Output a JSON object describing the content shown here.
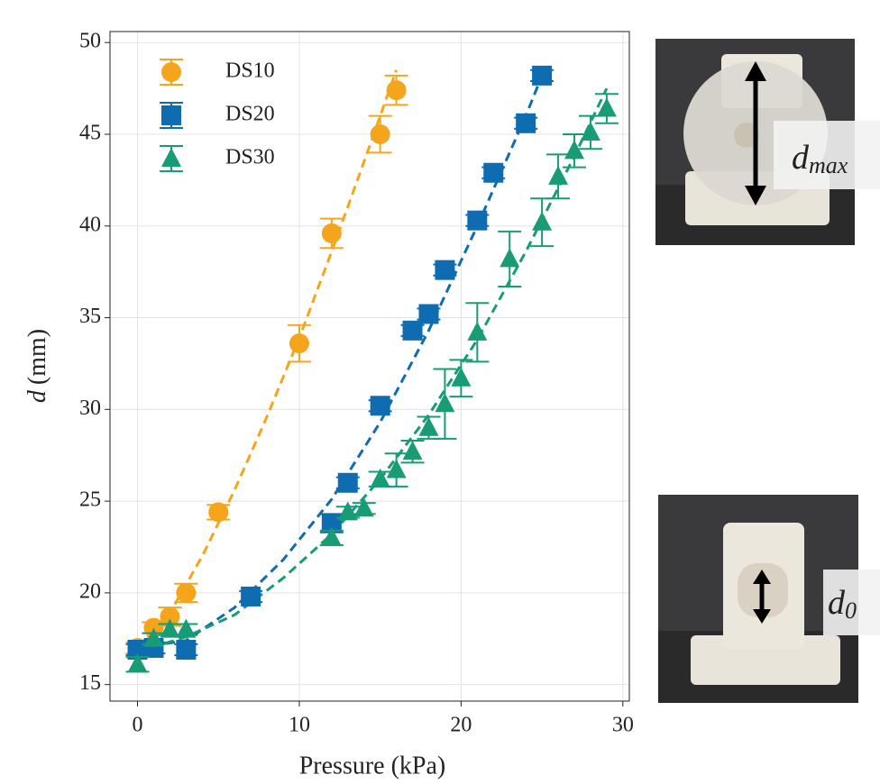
{
  "chart_data": {
    "type": "scatter",
    "x_label": "Pressure (kPa)",
    "y_label_symbol": "d",
    "y_label": "(mm)",
    "xlim": [
      -1.7,
      30.4
    ],
    "ylim": [
      14.1,
      50.6
    ],
    "xticks": [
      0,
      10,
      20,
      30
    ],
    "yticks": [
      15,
      20,
      25,
      30,
      35,
      40,
      45,
      50
    ],
    "grid": true,
    "legend": "upper left",
    "series": [
      {
        "name": "DS10",
        "color": "#f5a51c",
        "marker": "circle",
        "x": [
          0,
          1,
          2,
          3,
          5,
          10,
          12,
          15,
          16
        ],
        "values": [
          17.0,
          18.1,
          18.7,
          20.0,
          24.4,
          33.6,
          39.6,
          45.0,
          47.4
        ],
        "errors": [
          0.3,
          0.3,
          0.5,
          0.5,
          0.4,
          1.0,
          0.8,
          1.0,
          0.8
        ],
        "fit_x": [
          0,
          2,
          4,
          6,
          8,
          10,
          12,
          14,
          16
        ],
        "fit_y": [
          17.0,
          18.9,
          22.0,
          25.6,
          29.6,
          33.9,
          38.6,
          43.5,
          48.5
        ]
      },
      {
        "name": "DS20",
        "color": "#0f6cb0",
        "marker": "square",
        "x": [
          0,
          1,
          3,
          7,
          12,
          13,
          15,
          17,
          18,
          19,
          21,
          22,
          24,
          25
        ],
        "values": [
          16.9,
          17.0,
          16.9,
          19.8,
          23.8,
          26.0,
          30.2,
          34.3,
          35.2,
          37.6,
          40.3,
          42.9,
          45.6,
          48.2
        ],
        "errors": [
          0.3,
          0.3,
          0.3,
          0.3,
          0.5,
          0.3,
          0.3,
          0.3,
          0.3,
          0.3,
          0.3,
          0.3,
          0.3,
          0.3
        ],
        "fit_x": [
          0,
          3,
          6,
          9,
          12,
          15,
          18,
          21,
          24,
          25
        ],
        "fit_y": [
          17.0,
          17.4,
          19.2,
          21.8,
          25.1,
          29.3,
          34.3,
          40.0,
          46.0,
          48.2
        ]
      },
      {
        "name": "DS30",
        "color": "#179c76",
        "marker": "triangle",
        "x": [
          0,
          1,
          2,
          3,
          12,
          13,
          14,
          15,
          16,
          17,
          18,
          19,
          20,
          21,
          23,
          25,
          26,
          27,
          28,
          29
        ],
        "values": [
          16.1,
          17.5,
          18.0,
          18.0,
          23.0,
          24.4,
          24.6,
          26.2,
          26.7,
          27.7,
          29.0,
          30.3,
          31.7,
          34.2,
          38.2,
          40.2,
          42.7,
          44.1,
          45.1,
          46.4
        ],
        "errors": [
          0.4,
          0.3,
          0.3,
          0.3,
          0.4,
          0.3,
          0.3,
          0.4,
          0.9,
          0.6,
          0.6,
          1.9,
          1.0,
          1.6,
          1.5,
          1.3,
          1.2,
          0.9,
          0.9,
          0.8
        ],
        "fit_x": [
          0,
          3,
          6,
          9,
          12,
          15,
          18,
          21,
          24,
          27,
          29
        ],
        "fit_y": [
          16.8,
          17.6,
          18.8,
          20.8,
          23.2,
          26.2,
          29.7,
          33.8,
          38.6,
          43.8,
          47.5
        ]
      }
    ]
  },
  "photos": [
    {
      "label": "d",
      "sub": "max"
    },
    {
      "label": "d",
      "sub": "0"
    }
  ]
}
